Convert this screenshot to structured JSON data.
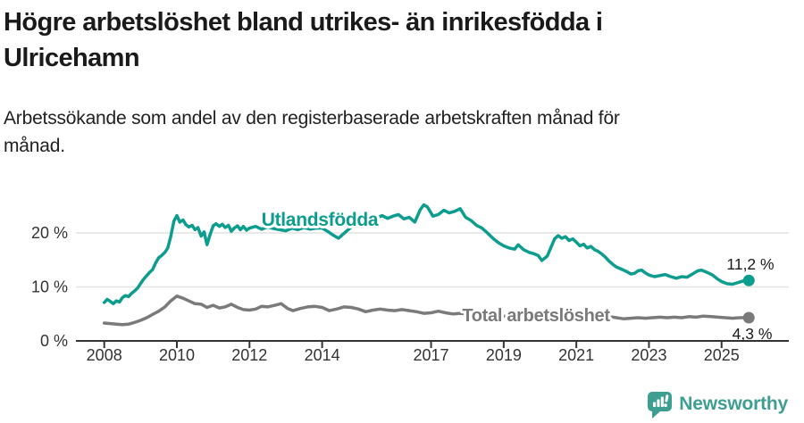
{
  "header": {
    "title_lines": [
      "Högre arbetslöshet bland utrikes- än inrikesfödda i",
      "Ulricehamn"
    ],
    "subtitle_lines": [
      "Arbetssökande som andel av den registerbaserade arbetskraften månad för",
      "månad."
    ]
  },
  "chart_data": {
    "type": "line",
    "title": "Högre arbetslöshet bland utrikes- än inrikesfödda i Ulricehamn",
    "subtitle": "Arbetssökande som andel av den registerbaserade arbetskraften månad för månad.",
    "unit": "%",
    "grid": "horizontal",
    "x_axis": {
      "ticks": [
        2008,
        2010,
        2012,
        2014,
        2017,
        2019,
        2021,
        2023,
        2025
      ],
      "labels": [
        "2008",
        "2010",
        "2012",
        "2014",
        "2017",
        "2019",
        "2021",
        "2023",
        "2025"
      ],
      "range": [
        2007.8,
        2026.0
      ]
    },
    "y_axis": {
      "ticks": [
        0,
        10,
        20
      ],
      "labels": [
        "0 %",
        "10 %",
        "20 %"
      ],
      "range": [
        0,
        26.5
      ]
    },
    "series": [
      {
        "name": "Utlandsfödda",
        "color": "#0c9d8e",
        "end_label": "11,2 %",
        "end_value": 11.2,
        "points": [
          [
            2008.0,
            7.1
          ],
          [
            2008.08,
            7.7
          ],
          [
            2008.17,
            7.3
          ],
          [
            2008.25,
            6.9
          ],
          [
            2008.33,
            7.4
          ],
          [
            2008.42,
            7.2
          ],
          [
            2008.5,
            8.0
          ],
          [
            2008.58,
            8.4
          ],
          [
            2008.67,
            8.2
          ],
          [
            2008.75,
            8.8
          ],
          [
            2008.83,
            9.2
          ],
          [
            2008.92,
            9.8
          ],
          [
            2009.0,
            10.6
          ],
          [
            2009.08,
            11.4
          ],
          [
            2009.17,
            12.1
          ],
          [
            2009.25,
            12.7
          ],
          [
            2009.33,
            13.2
          ],
          [
            2009.42,
            14.5
          ],
          [
            2009.5,
            15.4
          ],
          [
            2009.58,
            15.8
          ],
          [
            2009.67,
            16.4
          ],
          [
            2009.75,
            17.2
          ],
          [
            2009.83,
            19.3
          ],
          [
            2009.92,
            22.2
          ],
          [
            2010.0,
            23.2
          ],
          [
            2010.08,
            22.0
          ],
          [
            2010.17,
            22.4
          ],
          [
            2010.25,
            21.5
          ],
          [
            2010.33,
            21.1
          ],
          [
            2010.42,
            21.4
          ],
          [
            2010.5,
            20.6
          ],
          [
            2010.58,
            21.0
          ],
          [
            2010.67,
            19.4
          ],
          [
            2010.75,
            20.2
          ],
          [
            2010.83,
            17.8
          ],
          [
            2010.92,
            19.8
          ],
          [
            2011.0,
            21.3
          ],
          [
            2011.08,
            21.7
          ],
          [
            2011.17,
            21.2
          ],
          [
            2011.25,
            21.6
          ],
          [
            2011.33,
            21.0
          ],
          [
            2011.42,
            21.4
          ],
          [
            2011.5,
            20.3
          ],
          [
            2011.58,
            20.9
          ],
          [
            2011.67,
            21.3
          ],
          [
            2011.75,
            20.6
          ],
          [
            2011.83,
            21.2
          ],
          [
            2011.92,
            20.5
          ],
          [
            2012.0,
            20.9
          ],
          [
            2012.17,
            21.2
          ],
          [
            2012.33,
            20.7
          ],
          [
            2012.5,
            21.1
          ],
          [
            2012.67,
            20.8
          ],
          [
            2012.83,
            20.6
          ],
          [
            2013.0,
            20.4
          ],
          [
            2013.17,
            20.9
          ],
          [
            2013.33,
            20.6
          ],
          [
            2013.5,
            21.0
          ],
          [
            2013.67,
            20.7
          ],
          [
            2013.83,
            20.9
          ],
          [
            2014.0,
            20.9
          ],
          [
            2014.15,
            20.3
          ],
          [
            2014.3,
            19.6
          ],
          [
            2014.45,
            19.0
          ],
          [
            2014.6,
            19.9
          ],
          [
            2014.75,
            20.8
          ],
          [
            2014.9,
            21.7
          ],
          [
            2015.05,
            22.6
          ],
          [
            2015.2,
            23.0
          ],
          [
            2015.35,
            22.4
          ],
          [
            2015.5,
            22.8
          ],
          [
            2015.65,
            23.2
          ],
          [
            2015.8,
            22.7
          ],
          [
            2015.95,
            23.1
          ],
          [
            2016.1,
            23.4
          ],
          [
            2016.25,
            22.6
          ],
          [
            2016.4,
            22.9
          ],
          [
            2016.55,
            22.0
          ],
          [
            2016.7,
            24.3
          ],
          [
            2016.8,
            25.2
          ],
          [
            2016.9,
            24.8
          ],
          [
            2017.05,
            23.1
          ],
          [
            2017.2,
            23.4
          ],
          [
            2017.35,
            24.2
          ],
          [
            2017.5,
            23.7
          ],
          [
            2017.65,
            24.0
          ],
          [
            2017.8,
            24.5
          ],
          [
            2017.95,
            22.9
          ],
          [
            2018.1,
            22.3
          ],
          [
            2018.25,
            21.4
          ],
          [
            2018.4,
            20.9
          ],
          [
            2018.55,
            20.0
          ],
          [
            2018.7,
            19.0
          ],
          [
            2018.85,
            18.2
          ],
          [
            2019.0,
            17.6
          ],
          [
            2019.15,
            17.2
          ],
          [
            2019.3,
            17.0
          ],
          [
            2019.4,
            17.8
          ],
          [
            2019.55,
            16.9
          ],
          [
            2019.7,
            16.4
          ],
          [
            2019.85,
            16.1
          ],
          [
            2019.95,
            15.8
          ],
          [
            2020.05,
            14.9
          ],
          [
            2020.2,
            15.7
          ],
          [
            2020.3,
            17.3
          ],
          [
            2020.4,
            18.9
          ],
          [
            2020.5,
            19.5
          ],
          [
            2020.6,
            19.0
          ],
          [
            2020.7,
            19.3
          ],
          [
            2020.8,
            18.6
          ],
          [
            2020.9,
            18.9
          ],
          [
            2021.0,
            18.3
          ],
          [
            2021.1,
            17.6
          ],
          [
            2021.2,
            17.9
          ],
          [
            2021.3,
            17.2
          ],
          [
            2021.4,
            17.5
          ],
          [
            2021.5,
            16.9
          ],
          [
            2021.6,
            16.6
          ],
          [
            2021.7,
            16.1
          ],
          [
            2021.8,
            15.5
          ],
          [
            2021.9,
            14.8
          ],
          [
            2022.0,
            14.2
          ],
          [
            2022.1,
            13.7
          ],
          [
            2022.2,
            13.4
          ],
          [
            2022.3,
            13.1
          ],
          [
            2022.4,
            12.8
          ],
          [
            2022.5,
            12.4
          ],
          [
            2022.6,
            12.5
          ],
          [
            2022.7,
            13.0
          ],
          [
            2022.8,
            13.1
          ],
          [
            2022.9,
            12.6
          ],
          [
            2023.0,
            12.2
          ],
          [
            2023.15,
            11.9
          ],
          [
            2023.3,
            12.1
          ],
          [
            2023.45,
            12.3
          ],
          [
            2023.6,
            11.9
          ],
          [
            2023.75,
            11.6
          ],
          [
            2023.9,
            11.9
          ],
          [
            2024.05,
            11.8
          ],
          [
            2024.2,
            12.4
          ],
          [
            2024.35,
            13.0
          ],
          [
            2024.45,
            13.1
          ],
          [
            2024.6,
            12.7
          ],
          [
            2024.75,
            12.2
          ],
          [
            2024.9,
            11.4
          ],
          [
            2025.0,
            11.0
          ],
          [
            2025.15,
            10.6
          ],
          [
            2025.3,
            10.5
          ],
          [
            2025.45,
            10.8
          ],
          [
            2025.6,
            11.1
          ],
          [
            2025.75,
            11.2
          ]
        ]
      },
      {
        "name": "Total arbetslöshet",
        "color": "#7a7a7a",
        "end_label": "4,3 %",
        "end_value": 4.3,
        "points": [
          [
            2008.0,
            3.3
          ],
          [
            2008.17,
            3.2
          ],
          [
            2008.33,
            3.1
          ],
          [
            2008.5,
            3.0
          ],
          [
            2008.67,
            3.1
          ],
          [
            2008.83,
            3.4
          ],
          [
            2009.0,
            3.8
          ],
          [
            2009.17,
            4.3
          ],
          [
            2009.33,
            4.9
          ],
          [
            2009.5,
            5.5
          ],
          [
            2009.67,
            6.3
          ],
          [
            2009.83,
            7.4
          ],
          [
            2010.0,
            8.3
          ],
          [
            2010.17,
            7.9
          ],
          [
            2010.33,
            7.4
          ],
          [
            2010.5,
            6.9
          ],
          [
            2010.67,
            6.8
          ],
          [
            2010.83,
            6.2
          ],
          [
            2011.0,
            6.6
          ],
          [
            2011.17,
            6.1
          ],
          [
            2011.33,
            6.3
          ],
          [
            2011.5,
            6.8
          ],
          [
            2011.67,
            6.2
          ],
          [
            2011.83,
            5.8
          ],
          [
            2012.0,
            5.7
          ],
          [
            2012.17,
            5.9
          ],
          [
            2012.33,
            6.4
          ],
          [
            2012.5,
            6.3
          ],
          [
            2012.7,
            6.6
          ],
          [
            2012.87,
            6.9
          ],
          [
            2013.05,
            6.0
          ],
          [
            2013.2,
            5.6
          ],
          [
            2013.4,
            6.0
          ],
          [
            2013.6,
            6.3
          ],
          [
            2013.8,
            6.4
          ],
          [
            2014.0,
            6.2
          ],
          [
            2014.2,
            5.6
          ],
          [
            2014.4,
            5.9
          ],
          [
            2014.6,
            6.3
          ],
          [
            2014.8,
            6.2
          ],
          [
            2015.0,
            5.9
          ],
          [
            2015.2,
            5.4
          ],
          [
            2015.4,
            5.7
          ],
          [
            2015.6,
            5.9
          ],
          [
            2015.8,
            5.7
          ],
          [
            2016.0,
            5.6
          ],
          [
            2016.2,
            5.8
          ],
          [
            2016.4,
            5.6
          ],
          [
            2016.6,
            5.4
          ],
          [
            2016.8,
            5.1
          ],
          [
            2017.0,
            5.2
          ],
          [
            2017.2,
            5.5
          ],
          [
            2017.4,
            5.2
          ],
          [
            2017.6,
            5.0
          ],
          [
            2017.8,
            5.1
          ],
          [
            2018.0,
            5.0
          ],
          [
            2018.2,
            4.8
          ],
          [
            2018.5,
            4.9
          ],
          [
            2019.0,
            4.6
          ],
          [
            2019.5,
            4.4
          ],
          [
            2020.0,
            4.7
          ],
          [
            2020.5,
            5.4
          ],
          [
            2021.0,
            5.1
          ],
          [
            2021.5,
            4.7
          ],
          [
            2022.0,
            4.4
          ],
          [
            2022.3,
            4.1
          ],
          [
            2022.5,
            4.2
          ],
          [
            2022.7,
            4.3
          ],
          [
            2022.9,
            4.2
          ],
          [
            2023.1,
            4.3
          ],
          [
            2023.3,
            4.4
          ],
          [
            2023.5,
            4.3
          ],
          [
            2023.7,
            4.4
          ],
          [
            2023.9,
            4.3
          ],
          [
            2024.1,
            4.5
          ],
          [
            2024.3,
            4.4
          ],
          [
            2024.5,
            4.6
          ],
          [
            2024.7,
            4.5
          ],
          [
            2024.9,
            4.4
          ],
          [
            2025.1,
            4.3
          ],
          [
            2025.3,
            4.2
          ],
          [
            2025.5,
            4.3
          ],
          [
            2025.75,
            4.3
          ]
        ]
      }
    ],
    "legend_position": "inline-labels"
  },
  "colors": {
    "accent_teal": "#0c9d8e",
    "series_gray": "#7a7a7a",
    "gridline": "#e2e2e2",
    "axis": "#333333",
    "text_dark": "#1a1a1a",
    "brand_teal": "#3f9e92"
  },
  "footer": {
    "brand": "Newsworthy",
    "logo_icon": "bar-chart-speech-bubble-icon"
  }
}
